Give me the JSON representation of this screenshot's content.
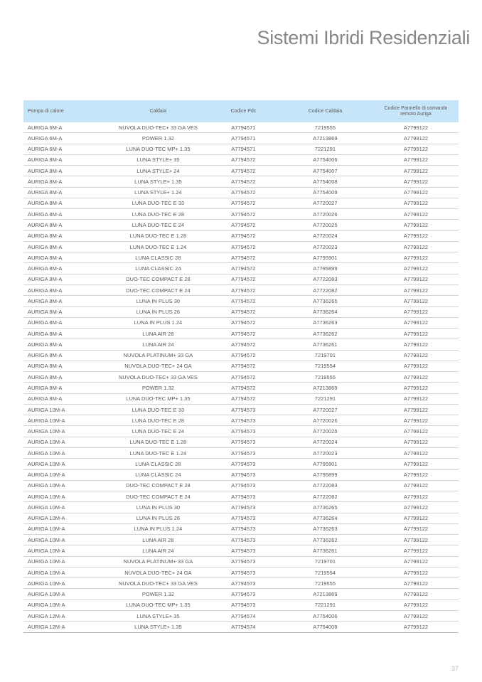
{
  "page": {
    "title": "Sistemi Ibridi Residenziali",
    "page_number": "37"
  },
  "colors": {
    "header_background": "#c7e5f8",
    "body_text": "#58595b",
    "title_text": "#85878a",
    "row_separator": "#d4d4d4",
    "page_number_text": "#b4b6b8"
  },
  "table": {
    "columns": [
      "Pompa di calore",
      "Caldaia",
      "Codice Pdc",
      "Codice Caldaia",
      "Codice Pannello di comando remoto Auriga"
    ],
    "rows": [
      [
        "AURIGA 6M-A",
        "NUVOLA DUO-TEC+ 33 GA VES",
        "A7794571",
        "7219555",
        "A7799122"
      ],
      [
        "AURIGA 6M-A",
        "POWER 1.32",
        "A7794571",
        "A7213869",
        "A7799122"
      ],
      [
        "AURIGA 6M-A",
        "LUNA DUO-TEC MP+ 1.35",
        "A7794571",
        "7221291",
        "A7799122"
      ],
      [
        "AURIGA 8M-A",
        "LUNA STYLE+ 35",
        "A7794572",
        "A7754006",
        "A7799122"
      ],
      [
        "AURIGA 8M-A",
        "LUNA STYLE+ 24",
        "A7794572",
        "A7754007",
        "A7799122"
      ],
      [
        "AURIGA 8M-A",
        "LUNA STYLE+ 1.35",
        "A7794572",
        "A7754008",
        "A7799122"
      ],
      [
        "AURIGA 8M-A",
        "LUNA STYLE+ 1.24",
        "A7794572",
        "A7754009",
        "A7799122"
      ],
      [
        "AURIGA 8M-A",
        "LUNA DUO-TEC E 33",
        "A7794572",
        "A7720027",
        "A7799122"
      ],
      [
        "AURIGA 8M-A",
        "LUNA DUO-TEC E 28",
        "A7794572",
        "A7720026",
        "A7799122"
      ],
      [
        "AURIGA 8M-A",
        "LUNA DUO-TEC E 24",
        "A7794572",
        "A7720025",
        "A7799122"
      ],
      [
        "AURIGA 8M-A",
        "LUNA DUO-TEC E 1.28",
        "A7794572",
        "A7720024",
        "A7799122"
      ],
      [
        "AURIGA 8M-A",
        "LUNA DUO-TEC E 1.24",
        "A7794572",
        "A7720023",
        "A7799122"
      ],
      [
        "AURIGA 8M-A",
        "LUNA CLASSIC 28",
        "A7794572",
        "A7795901",
        "A7799122"
      ],
      [
        "AURIGA 8M-A",
        "LUNA CLASSIC 24",
        "A7794572",
        "A7795899",
        "A7799122"
      ],
      [
        "AURIGA 8M-A",
        "DUO-TEC COMPACT E 28",
        "A7794572",
        "A7722083",
        "A7799122"
      ],
      [
        "AURIGA 8M-A",
        "DUO-TEC COMPACT E 24",
        "A7794572",
        "A7722082",
        "A7799122"
      ],
      [
        "AURIGA 8M-A",
        "LUNA IN PLUS 30",
        "A7794572",
        "A7736265",
        "A7799122"
      ],
      [
        "AURIGA 8M-A",
        "LUNA IN PLUS 26",
        "A7794572",
        "A7736264",
        "A7799122"
      ],
      [
        "AURIGA 8M-A",
        "LUNA IN PLUS 1.24",
        "A7794572",
        "A7736263",
        "A7799122"
      ],
      [
        "AURIGA 8M-A",
        "LUNA AIR 28",
        "A7794572",
        "A7736262",
        "A7799122"
      ],
      [
        "AURIGA 8M-A",
        "LUNA AIR 24",
        "A7794572",
        "A7736261",
        "A7799122"
      ],
      [
        "AURIGA 8M-A",
        "NUVOLA PLATINUM+ 33 GA",
        "A7794572",
        "7219701",
        "A7799122"
      ],
      [
        "AURIGA 8M-A",
        "NUVOLA DUO-TEC+ 24 GA",
        "A7794572",
        "7219554",
        "A7799122"
      ],
      [
        "AURIGA 8M-A",
        "NUVOLA DUO-TEC+ 33 GA VES",
        "A7794572",
        "7219555",
        "A7799122"
      ],
      [
        "AURIGA 8M-A",
        "POWER 1.32",
        "A7794572",
        "A7213869",
        "A7799122"
      ],
      [
        "AURIGA 8M-A",
        "LUNA DUO-TEC MP+ 1.35",
        "A7794572",
        "7221291",
        "A7799122"
      ],
      [
        "AURIGA 10M-A",
        "LUNA DUO-TEC E 33",
        "A7794573",
        "A7720027",
        "A7799122"
      ],
      [
        "AURIGA 10M-A",
        "LUNA DUO-TEC E 28",
        "A7794573",
        "A7720026",
        "A7799122"
      ],
      [
        "AURIGA 10M-A",
        "LUNA DUO-TEC E 24",
        "A7794573",
        "A7720025",
        "A7799122"
      ],
      [
        "AURIGA 10M-A",
        "LUNA DUO-TEC E 1.28",
        "A7794573",
        "A7720024",
        "A7799122"
      ],
      [
        "AURIGA 10M-A",
        "LUNA DUO-TEC E 1.24",
        "A7794573",
        "A7720023",
        "A7799122"
      ],
      [
        "AURIGA 10M-A",
        "LUNA CLASSIC 28",
        "A7794573",
        "A7795901",
        "A7799122"
      ],
      [
        "AURIGA 10M-A",
        "LUNA CLASSIC 24",
        "A7794573",
        "A7795899",
        "A7799122"
      ],
      [
        "AURIGA 10M-A",
        "DUO-TEC COMPACT E 28",
        "A7794573",
        "A7722083",
        "A7799122"
      ],
      [
        "AURIGA 10M-A",
        "DUO-TEC COMPACT E 24",
        "A7794573",
        "A7722082",
        "A7799122"
      ],
      [
        "AURIGA 10M-A",
        "LUNA IN PLUS 30",
        "A7794573",
        "A7736265",
        "A7799122"
      ],
      [
        "AURIGA 10M-A",
        "LUNA IN PLUS 26",
        "A7794573",
        "A7736264",
        "A7799122"
      ],
      [
        "AURIGA 10M-A",
        "LUNA IN PLUS 1.24",
        "A7794573",
        "A7736263",
        "A7799122"
      ],
      [
        "AURIGA 10M-A",
        "LUNA AIR 28",
        "A7794573",
        "A7736262",
        "A7799122"
      ],
      [
        "AURIGA 10M-A",
        "LUNA AIR 24",
        "A7794573",
        "A7736261",
        "A7799122"
      ],
      [
        "AURIGA 10M-A",
        "NUVOLA PLATINUM+ 33 GA",
        "A7794573",
        "7219701",
        "A7799122"
      ],
      [
        "AURIGA 10M-A",
        "NUVOLA DUO-TEC+ 24 GA",
        "A7794573",
        "7219554",
        "A7799122"
      ],
      [
        "AURIGA 10M-A",
        "NUVOLA DUO-TEC+ 33 GA VES",
        "A7794573",
        "7219555",
        "A7799122"
      ],
      [
        "AURIGA 10M-A",
        "POWER 1.32",
        "A7794573",
        "A7213869",
        "A7799122"
      ],
      [
        "AURIGA 10M-A",
        "LUNA DUO-TEC MP+ 1.35",
        "A7794573",
        "7221291",
        "A7799122"
      ],
      [
        "AURIGA 12M-A",
        "LUNA STYLE+ 35",
        "A7794574",
        "A7754006",
        "A7799122"
      ],
      [
        "AURIGA 12M-A",
        "LUNA STYLE+ 1.35",
        "A7794574",
        "A7754008",
        "A7799122"
      ]
    ]
  }
}
